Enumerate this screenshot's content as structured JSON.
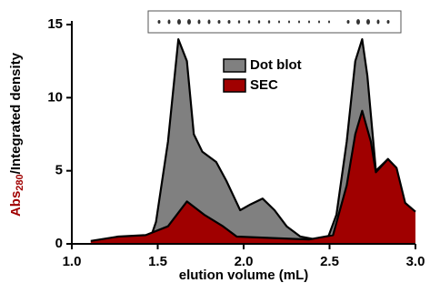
{
  "chart_data": {
    "type": "area",
    "y_label": {
      "main": "Abs",
      "subscript": "280",
      "rest": "/Integrated density"
    },
    "x_label": "elution volume (mL)",
    "xlim": [
      1.0,
      3.0
    ],
    "xticks": [
      {
        "value": 1.0,
        "label": "1.0"
      },
      {
        "value": 1.5,
        "label": "1.5"
      },
      {
        "value": 2.0,
        "label": "2.0"
      },
      {
        "value": 2.5,
        "label": "2.5"
      },
      {
        "value": 3.0,
        "label": "3.0"
      }
    ],
    "ylim": [
      0,
      15
    ],
    "yticks": [
      0,
      5,
      10,
      15
    ],
    "legend": "top-center",
    "series": [
      {
        "name": "Dot blot",
        "color": "#808080",
        "x": [
          1.455,
          1.49,
          1.56,
          1.62,
          1.67,
          1.71,
          1.76,
          1.84,
          1.9,
          1.98,
          2.04,
          2.11,
          2.18,
          2.25,
          2.33,
          2.42,
          2.49,
          2.54,
          2.6,
          2.65,
          2.69,
          2.72,
          2.77,
          2.84,
          2.9,
          2.96,
          3.0
        ],
        "values": [
          0.3,
          1.5,
          7,
          14,
          12.5,
          7.5,
          6.3,
          5.6,
          4.3,
          2.3,
          2.7,
          3.1,
          2.3,
          1.2,
          0.5,
          0.3,
          0.4,
          2,
          7,
          12.5,
          14,
          11.5,
          5,
          5.8,
          3.3,
          2.3,
          2.2
        ]
      },
      {
        "name": "SEC",
        "color": "#a00000",
        "x": [
          1.11,
          1.27,
          1.43,
          1.56,
          1.67,
          1.77,
          1.88,
          1.96,
          2.17,
          2.38,
          2.52,
          2.6,
          2.65,
          2.69,
          2.74,
          2.77,
          2.84,
          2.89,
          2.94,
          3.0
        ],
        "values": [
          0.2,
          0.5,
          0.6,
          1.2,
          2.9,
          2.0,
          1.2,
          0.5,
          0.4,
          0.3,
          0.6,
          4,
          7.5,
          9.1,
          7,
          4.9,
          5.8,
          5.2,
          2.8,
          2.2
        ]
      }
    ]
  }
}
